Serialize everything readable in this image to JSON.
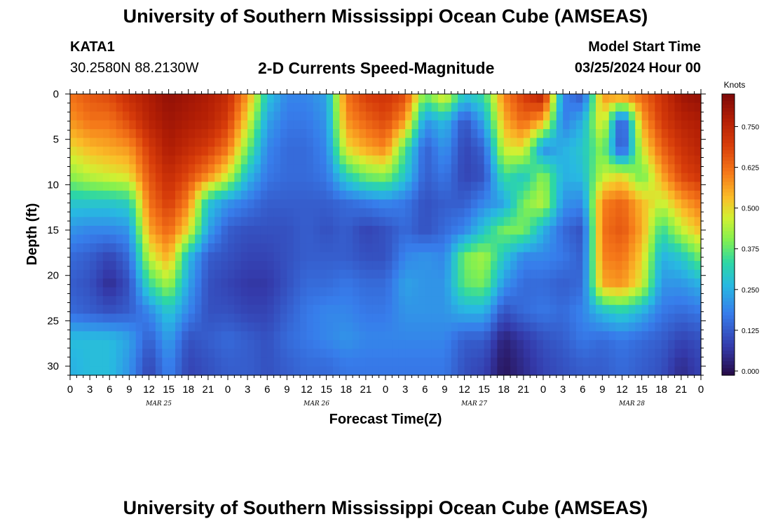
{
  "header": {
    "title": "University of Southern Mississippi Ocean Cube (AMSEAS)",
    "station_id": "KATA1",
    "station_coords": "30.2580N  88.2130W",
    "plot_title": "2-D Currents Speed-Magnitude",
    "start_label": "Model Start Time",
    "start_value": "03/25/2024 Hour 00"
  },
  "footer": {
    "title": "University of Southern Mississippi Ocean Cube (AMSEAS)"
  },
  "chart_data": {
    "type": "heatmap",
    "xlabel": "Forecast Time(Z)",
    "ylabel": "Depth (ft)",
    "colorbar_label": "Knots",
    "x_tick_labels": [
      "0",
      "3",
      "6",
      "9",
      "12",
      "15",
      "18",
      "21",
      "0",
      "3",
      "6",
      "9",
      "12",
      "15",
      "18",
      "21",
      "0",
      "3",
      "6",
      "9",
      "12",
      "15",
      "18",
      "21",
      "0",
      "3",
      "6",
      "9",
      "12",
      "15",
      "18",
      "21",
      "0"
    ],
    "date_labels": [
      "MAR 25",
      "MAR 26",
      "MAR 27",
      "MAR 28"
    ],
    "y_ticks": [
      0,
      5,
      10,
      15,
      20,
      25,
      30
    ],
    "ylim": [
      31,
      0
    ],
    "colorbar_ticks": [
      "0.000",
      "0.125",
      "0.250",
      "0.375",
      "0.500",
      "0.625",
      "0.750"
    ],
    "value_range": [
      0,
      0.85
    ],
    "x_hours": [
      0,
      3,
      6,
      9,
      12,
      15,
      18,
      21,
      24,
      27,
      30,
      33,
      36,
      39,
      42,
      45,
      48,
      51,
      54,
      57,
      60,
      63,
      66,
      69,
      72,
      75,
      78,
      81,
      84,
      87,
      90,
      93,
      96
    ],
    "depths_ft": [
      0,
      3,
      6,
      9,
      12,
      15,
      18,
      21,
      24,
      27,
      30
    ],
    "speed_knots": [
      [
        0.62,
        0.66,
        0.68,
        0.74,
        0.78,
        0.82,
        0.8,
        0.78,
        0.74,
        0.58,
        0.3,
        0.2,
        0.2,
        0.24,
        0.62,
        0.7,
        0.72,
        0.68,
        0.4,
        0.52,
        0.3,
        0.35,
        0.6,
        0.7,
        0.78,
        0.2,
        0.12,
        0.58,
        0.62,
        0.64,
        0.72,
        0.8,
        0.82
      ],
      [
        0.58,
        0.62,
        0.62,
        0.68,
        0.76,
        0.8,
        0.78,
        0.76,
        0.7,
        0.5,
        0.24,
        0.18,
        0.18,
        0.22,
        0.58,
        0.64,
        0.68,
        0.58,
        0.22,
        0.28,
        0.12,
        0.25,
        0.55,
        0.64,
        0.56,
        0.18,
        0.26,
        0.52,
        0.1,
        0.56,
        0.7,
        0.76,
        0.78
      ],
      [
        0.5,
        0.54,
        0.56,
        0.58,
        0.7,
        0.78,
        0.74,
        0.7,
        0.62,
        0.4,
        0.2,
        0.16,
        0.16,
        0.2,
        0.5,
        0.56,
        0.6,
        0.36,
        0.14,
        0.22,
        0.1,
        0.15,
        0.48,
        0.5,
        0.2,
        0.26,
        0.3,
        0.42,
        0.1,
        0.48,
        0.64,
        0.72,
        0.76
      ],
      [
        0.42,
        0.46,
        0.48,
        0.5,
        0.66,
        0.74,
        0.68,
        0.6,
        0.48,
        0.28,
        0.18,
        0.16,
        0.16,
        0.18,
        0.32,
        0.4,
        0.42,
        0.3,
        0.14,
        0.18,
        0.1,
        0.12,
        0.36,
        0.3,
        0.42,
        0.26,
        0.28,
        0.46,
        0.5,
        0.38,
        0.56,
        0.68,
        0.72
      ],
      [
        0.3,
        0.3,
        0.3,
        0.32,
        0.62,
        0.7,
        0.6,
        0.3,
        0.22,
        0.18,
        0.14,
        0.14,
        0.14,
        0.14,
        0.16,
        0.18,
        0.2,
        0.18,
        0.12,
        0.14,
        0.14,
        0.2,
        0.24,
        0.4,
        0.46,
        0.22,
        0.2,
        0.6,
        0.64,
        0.54,
        0.46,
        0.56,
        0.62
      ],
      [
        0.22,
        0.2,
        0.2,
        0.22,
        0.56,
        0.64,
        0.5,
        0.24,
        0.14,
        0.12,
        0.12,
        0.12,
        0.14,
        0.12,
        0.14,
        0.1,
        0.12,
        0.16,
        0.12,
        0.16,
        0.2,
        0.3,
        0.4,
        0.4,
        0.26,
        0.16,
        0.12,
        0.62,
        0.66,
        0.56,
        0.34,
        0.46,
        0.54
      ],
      [
        0.16,
        0.14,
        0.1,
        0.16,
        0.46,
        0.56,
        0.28,
        0.14,
        0.12,
        0.1,
        0.1,
        0.12,
        0.14,
        0.14,
        0.14,
        0.12,
        0.12,
        0.2,
        0.22,
        0.2,
        0.4,
        0.44,
        0.3,
        0.2,
        0.2,
        0.18,
        0.14,
        0.6,
        0.62,
        0.52,
        0.26,
        0.3,
        0.4
      ],
      [
        0.14,
        0.12,
        0.06,
        0.12,
        0.34,
        0.44,
        0.24,
        0.12,
        0.1,
        0.08,
        0.08,
        0.12,
        0.16,
        0.16,
        0.18,
        0.16,
        0.16,
        0.24,
        0.22,
        0.22,
        0.38,
        0.4,
        0.22,
        0.16,
        0.16,
        0.14,
        0.16,
        0.56,
        0.58,
        0.48,
        0.22,
        0.22,
        0.26
      ],
      [
        0.16,
        0.14,
        0.12,
        0.14,
        0.2,
        0.3,
        0.2,
        0.12,
        0.12,
        0.1,
        0.1,
        0.14,
        0.18,
        0.2,
        0.2,
        0.18,
        0.18,
        0.22,
        0.22,
        0.22,
        0.26,
        0.26,
        0.12,
        0.16,
        0.18,
        0.16,
        0.2,
        0.28,
        0.32,
        0.26,
        0.18,
        0.16,
        0.18
      ],
      [
        0.28,
        0.28,
        0.28,
        0.24,
        0.14,
        0.24,
        0.12,
        0.14,
        0.16,
        0.14,
        0.12,
        0.16,
        0.18,
        0.2,
        0.22,
        0.2,
        0.2,
        0.2,
        0.2,
        0.2,
        0.14,
        0.14,
        0.04,
        0.08,
        0.12,
        0.14,
        0.18,
        0.16,
        0.18,
        0.16,
        0.14,
        0.1,
        0.12
      ],
      [
        0.26,
        0.28,
        0.28,
        0.22,
        0.1,
        0.2,
        0.1,
        0.12,
        0.14,
        0.14,
        0.12,
        0.14,
        0.16,
        0.16,
        0.18,
        0.18,
        0.18,
        0.18,
        0.18,
        0.18,
        0.12,
        0.1,
        0.02,
        0.06,
        0.1,
        0.12,
        0.14,
        0.14,
        0.16,
        0.14,
        0.12,
        0.06,
        0.1
      ]
    ]
  }
}
